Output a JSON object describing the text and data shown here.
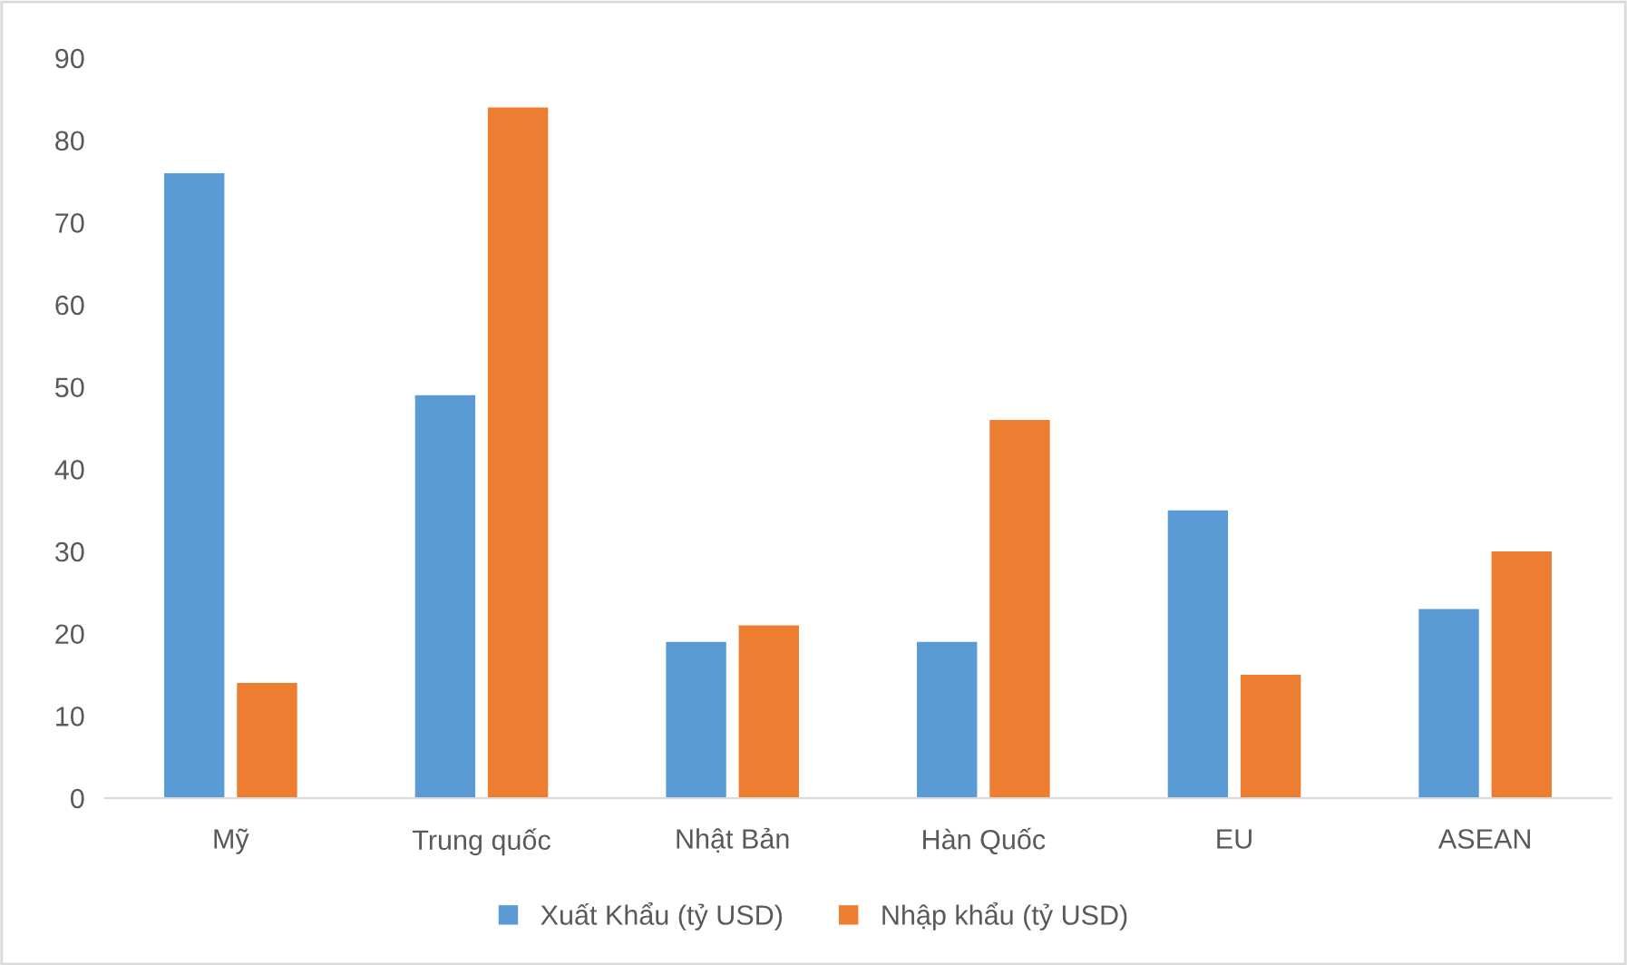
{
  "chart_data": {
    "type": "bar",
    "categories": [
      "Mỹ",
      "Trung quốc",
      "Nhật Bản",
      "Hàn Quốc",
      "EU",
      "ASEAN"
    ],
    "series": [
      {
        "name": "Xuất Khẩu (tỷ USD)",
        "color": "#5b9bd5",
        "values": [
          76,
          49,
          19,
          19,
          35,
          23
        ]
      },
      {
        "name": "Nhập khẩu (tỷ USD)",
        "color": "#ed7d31",
        "values": [
          14,
          84,
          21,
          46,
          15,
          30
        ]
      }
    ],
    "ylim": [
      0,
      90
    ],
    "yticks": [
      0,
      10,
      20,
      30,
      40,
      50,
      60,
      70,
      80,
      90
    ],
    "grid": false,
    "legend": "bottom"
  }
}
